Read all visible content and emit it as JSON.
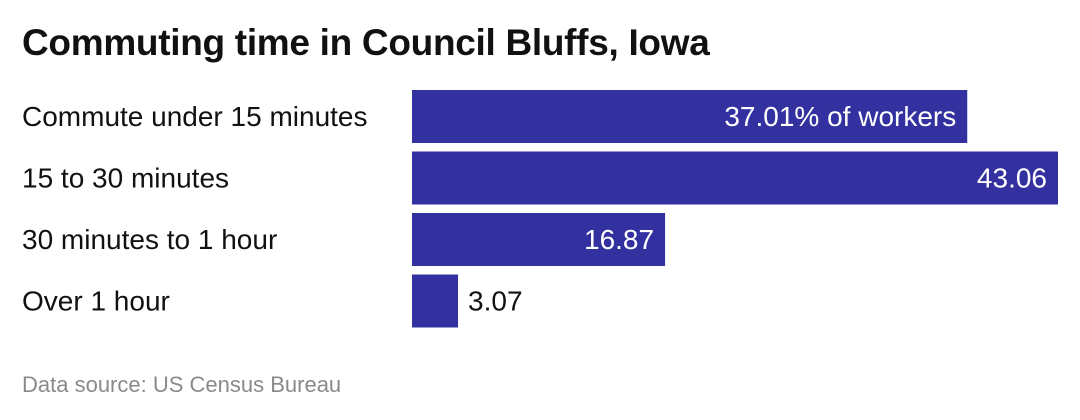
{
  "chart_data": {
    "type": "bar",
    "orientation": "horizontal",
    "title": "Commuting time in Council Bluffs, Iowa",
    "categories": [
      "Commute under 15 minutes",
      "15 to 30 minutes",
      "30 minutes to 1 hour",
      "Over 1 hour"
    ],
    "values": [
      37.01,
      43.06,
      16.87,
      3.07
    ],
    "data_labels": [
      "37.01% of workers",
      "43.06",
      "16.87",
      "3.07"
    ],
    "xlim": [
      0,
      43.06
    ],
    "grid": false,
    "legend": "none",
    "bar_color": "#3330a0"
  },
  "source": "Data source: US Census Bureau"
}
